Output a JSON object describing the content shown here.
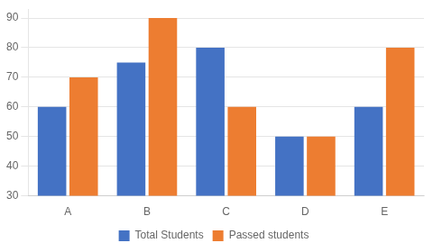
{
  "chart_data": {
    "type": "bar",
    "categories": [
      "A",
      "B",
      "C",
      "D",
      "E"
    ],
    "series": [
      {
        "name": "Total Students",
        "color": "#4472c4",
        "values": [
          60,
          75,
          80,
          50,
          60
        ]
      },
      {
        "name": "Passed students",
        "color": "#ed7d31",
        "values": [
          70,
          90,
          60,
          50,
          80
        ]
      }
    ],
    "ylim": [
      30,
      93
    ],
    "yticks": [
      30,
      40,
      50,
      60,
      70,
      80,
      90
    ],
    "grid": true,
    "legend": "bottom"
  }
}
